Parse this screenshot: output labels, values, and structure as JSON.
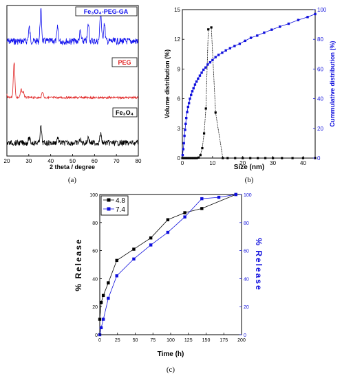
{
  "captions": {
    "a": "(a)",
    "b": "(b)",
    "c": "(c)"
  },
  "chart_data": [
    {
      "type": "line",
      "panel": "(a)",
      "xlabel": "2 theta / degree",
      "ylabel": "",
      "xlim": [
        20,
        80
      ],
      "xticks": [
        "20",
        "30",
        "40",
        "50",
        "60",
        "70",
        "80"
      ],
      "legend_labels": {
        "fe3o4_peg_ga": "Fe₃O₄-PEG-GA",
        "peg": "PEG",
        "fe3o4": "Fe₃O₄"
      },
      "series": [
        {
          "name": "Fe₃O₄-PEG-GA",
          "color": "#1010ee",
          "peaks": [
            [
              35.5,
              1.0
            ],
            [
              30.2,
              0.45
            ],
            [
              43.2,
              0.45
            ],
            [
              57.2,
              0.55
            ],
            [
              62.8,
              1.0
            ],
            [
              64.5,
              0.6
            ],
            [
              53.5,
              0.3
            ]
          ]
        },
        {
          "name": "PEG",
          "color": "#e02020",
          "peaks": [
            [
              19.2,
              1.0
            ],
            [
              23.3,
              0.9
            ],
            [
              26.5,
              0.2
            ],
            [
              27.5,
              0.15
            ],
            [
              36.3,
              0.15
            ]
          ]
        },
        {
          "name": "Fe₃O₄",
          "color": "#000000",
          "peaks": [
            [
              35.5,
              1.0
            ],
            [
              30.2,
              0.3
            ],
            [
              43.2,
              0.35
            ],
            [
              57.2,
              0.35
            ],
            [
              62.8,
              0.55
            ],
            [
              53.5,
              0.2
            ]
          ]
        }
      ]
    },
    {
      "type": "line",
      "panel": "(b)",
      "xlabel": "Size (nm)",
      "ylabel": "Volume distribution (%)",
      "y2label": "Cummulative distribution (%)",
      "xlim": [
        0,
        44
      ],
      "ylim": [
        0,
        15
      ],
      "y2lim": [
        0,
        100
      ],
      "xticks": [
        "0",
        "10",
        "20",
        "30",
        "40"
      ],
      "yticks": [
        "0",
        "3",
        "6",
        "9",
        "12",
        "15"
      ],
      "y2ticks": [
        "0",
        "20",
        "40",
        "60",
        "80",
        "100"
      ],
      "series": [
        {
          "name": "Volume distribution",
          "color": "#000000",
          "axis": "left",
          "x": [
            0,
            0.6,
            1.2,
            1.8,
            2.4,
            3.0,
            3.6,
            4.2,
            4.8,
            5.4,
            6.0,
            6.6,
            7.2,
            7.8,
            8.6,
            9.6,
            11.0,
            13.4,
            15.0,
            17.5,
            20.0,
            22.5,
            25.0,
            27.5,
            30.0,
            33.0,
            36.5,
            40.0,
            44.0
          ],
          "y": [
            0,
            0,
            0,
            0,
            0,
            0,
            0,
            0,
            0,
            0.05,
            0.3,
            1.0,
            2.5,
            5.0,
            13.0,
            13.2,
            4.6,
            0,
            0,
            0,
            0,
            0,
            0,
            0,
            0,
            0,
            0,
            0,
            0
          ]
        },
        {
          "name": "Cummulative distribution",
          "color": "#1010dd",
          "axis": "right",
          "x": [
            0.1,
            0.3,
            0.5,
            0.7,
            0.9,
            1.1,
            1.3,
            1.6,
            1.9,
            2.2,
            2.5,
            2.9,
            3.3,
            3.7,
            4.2,
            4.7,
            5.2,
            5.8,
            6.4,
            7.0,
            7.7,
            8.4,
            9.2,
            10.0,
            11.0,
            12.0,
            13.2,
            14.4,
            15.8,
            17.3,
            19.0,
            20.8,
            22.7,
            24.8,
            27.1,
            29.6,
            32.3,
            35.2,
            38.4,
            41.5,
            44.0
          ],
          "y": [
            2,
            6,
            10,
            15,
            19,
            23,
            27,
            31,
            34.5,
            37,
            40,
            42.5,
            45,
            47,
            49.5,
            51.5,
            53.5,
            55.5,
            57.5,
            59.5,
            61,
            63,
            64.5,
            66,
            68,
            69.5,
            71,
            72.5,
            74,
            75.5,
            77,
            79,
            81,
            82.5,
            84.5,
            86.5,
            88.5,
            90.5,
            93,
            95,
            97
          ]
        }
      ]
    },
    {
      "type": "line",
      "panel": "(c)",
      "xlabel": "Time (h)",
      "ylabel": "% Release",
      "y2label": "% Release",
      "xlim": [
        0,
        200
      ],
      "ylim": [
        0,
        100
      ],
      "y2lim": [
        0,
        100
      ],
      "xticks": [
        "0",
        "25",
        "50",
        "75",
        "100",
        "125",
        "150",
        "175",
        "200"
      ],
      "yticks": [
        "0",
        "20",
        "40",
        "60",
        "80",
        "100"
      ],
      "y2ticks": [
        "0",
        "20",
        "40",
        "60",
        "80",
        "100"
      ],
      "legend_position": "top-left",
      "series": [
        {
          "name": "4.8",
          "color": "#000000",
          "x": [
            0,
            2,
            5,
            12,
            24,
            48,
            72,
            96,
            120,
            144,
            192
          ],
          "y": [
            11,
            23,
            28,
            37,
            53,
            61,
            69,
            82,
            87,
            90,
            100
          ]
        },
        {
          "name": "7.4",
          "color": "#1010dd",
          "x": [
            0,
            2,
            5,
            12,
            24,
            48,
            72,
            96,
            120,
            144,
            168,
            192
          ],
          "y": [
            0,
            5,
            11,
            26,
            42,
            54,
            64,
            73,
            84,
            97,
            98,
            100
          ]
        }
      ]
    }
  ]
}
